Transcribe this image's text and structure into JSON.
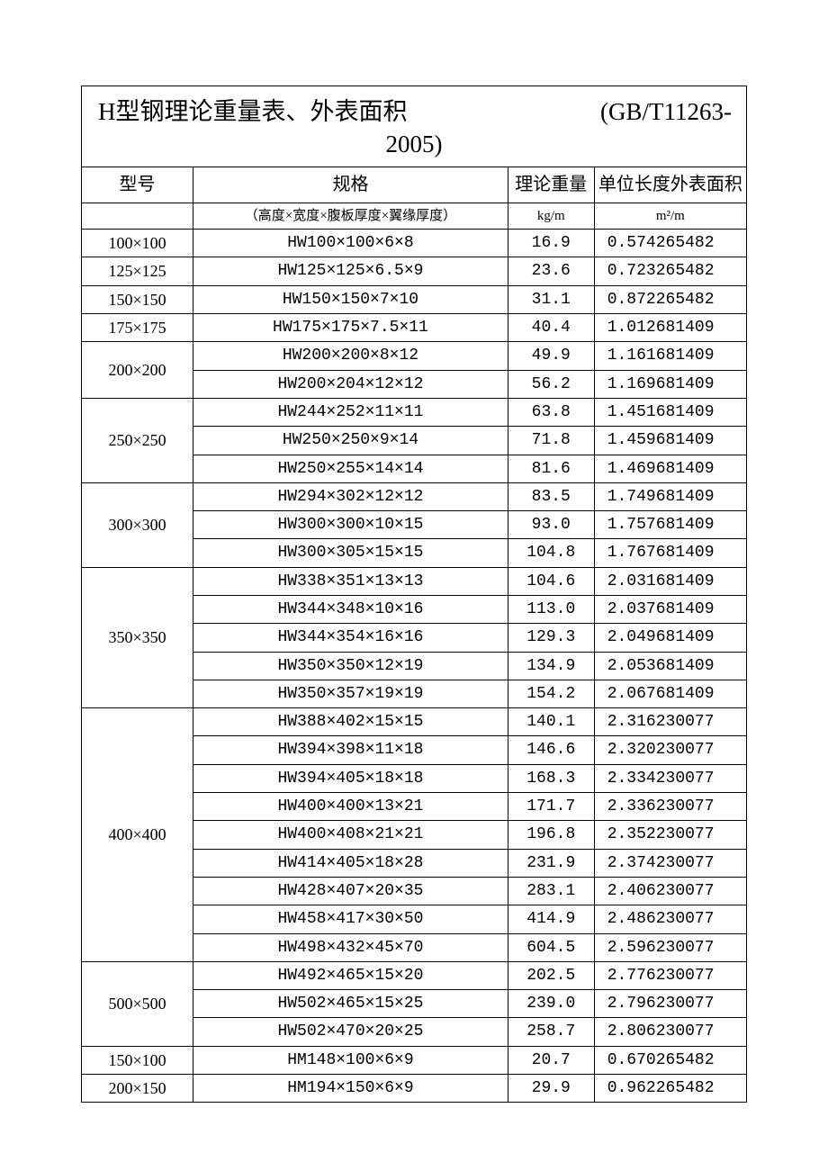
{
  "title_main": "H型钢理论重量表、外表面积",
  "title_standard": "(GB/T11263-",
  "title_year": "2005)",
  "headers": {
    "model": "型号",
    "spec": "规格",
    "weight": "理论重量",
    "area": "单位长度外表面积"
  },
  "subheaders": {
    "spec": "（高度×宽度×腹板厚度×翼缘厚度）",
    "weight": "kg/m",
    "area": "m²/m"
  },
  "groups": [
    {
      "model": "100×100",
      "rows": [
        {
          "spec": "HW100×100×6×8",
          "wt": "16.9",
          "area": "0.574265482"
        }
      ]
    },
    {
      "model": "125×125",
      "rows": [
        {
          "spec": "HW125×125×6.5×9",
          "wt": "23.6",
          "area": "0.723265482"
        }
      ]
    },
    {
      "model": "150×150",
      "rows": [
        {
          "spec": "HW150×150×7×10",
          "wt": "31.1",
          "area": "0.872265482"
        }
      ]
    },
    {
      "model": "175×175",
      "rows": [
        {
          "spec": "HW175×175×7.5×11",
          "wt": "40.4",
          "area": "1.012681409"
        }
      ]
    },
    {
      "model": "200×200",
      "rows": [
        {
          "spec": "HW200×200×8×12",
          "wt": "49.9",
          "area": "1.161681409"
        },
        {
          "spec": "HW200×204×12×12",
          "wt": "56.2",
          "area": "1.169681409"
        }
      ]
    },
    {
      "model": "250×250",
      "rows": [
        {
          "spec": "HW244×252×11×11",
          "wt": "63.8",
          "area": "1.451681409"
        },
        {
          "spec": "HW250×250×9×14",
          "wt": "71.8",
          "area": "1.459681409"
        },
        {
          "spec": "HW250×255×14×14",
          "wt": "81.6",
          "area": "1.469681409"
        }
      ]
    },
    {
      "model": "300×300",
      "rows": [
        {
          "spec": "HW294×302×12×12",
          "wt": "83.5",
          "area": "1.749681409"
        },
        {
          "spec": "HW300×300×10×15",
          "wt": "93.0",
          "area": "1.757681409"
        },
        {
          "spec": "HW300×305×15×15",
          "wt": "104.8",
          "area": "1.767681409"
        }
      ]
    },
    {
      "model": "350×350",
      "rows": [
        {
          "spec": "HW338×351×13×13",
          "wt": "104.6",
          "area": "2.031681409"
        },
        {
          "spec": "HW344×348×10×16",
          "wt": "113.0",
          "area": "2.037681409"
        },
        {
          "spec": "HW344×354×16×16",
          "wt": "129.3",
          "area": "2.049681409"
        },
        {
          "spec": "HW350×350×12×19",
          "wt": "134.9",
          "area": "2.053681409"
        },
        {
          "spec": "HW350×357×19×19",
          "wt": "154.2",
          "area": "2.067681409"
        }
      ]
    },
    {
      "model": "400×400",
      "rows": [
        {
          "spec": "HW388×402×15×15",
          "wt": "140.1",
          "area": "2.316230077"
        },
        {
          "spec": "HW394×398×11×18",
          "wt": "146.6",
          "area": "2.320230077"
        },
        {
          "spec": "HW394×405×18×18",
          "wt": "168.3",
          "area": "2.334230077"
        },
        {
          "spec": "HW400×400×13×21",
          "wt": "171.7",
          "area": "2.336230077"
        },
        {
          "spec": "HW400×408×21×21",
          "wt": "196.8",
          "area": "2.352230077"
        },
        {
          "spec": "HW414×405×18×28",
          "wt": "231.9",
          "area": "2.374230077"
        },
        {
          "spec": "HW428×407×20×35",
          "wt": "283.1",
          "area": "2.406230077"
        },
        {
          "spec": "HW458×417×30×50",
          "wt": "414.9",
          "area": "2.486230077"
        },
        {
          "spec": "HW498×432×45×70",
          "wt": "604.5",
          "area": "2.596230077"
        }
      ]
    },
    {
      "model": "500×500",
      "rows": [
        {
          "spec": "HW492×465×15×20",
          "wt": "202.5",
          "area": "2.776230077"
        },
        {
          "spec": "HW502×465×15×25",
          "wt": "239.0",
          "area": "2.796230077"
        },
        {
          "spec": "HW502×470×20×25",
          "wt": "258.7",
          "area": "2.806230077"
        }
      ]
    },
    {
      "model": "150×100",
      "rows": [
        {
          "spec": "HM148×100×6×9",
          "wt": "20.7",
          "area": "0.670265482"
        }
      ]
    },
    {
      "model": "200×150",
      "rows": [
        {
          "spec": "HM194×150×6×9",
          "wt": "29.9",
          "area": "0.962265482"
        }
      ]
    }
  ]
}
